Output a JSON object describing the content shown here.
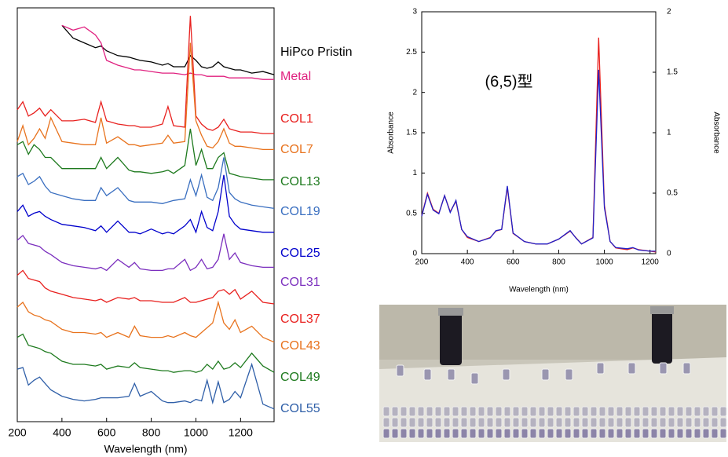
{
  "chart_data": [
    {
      "type": "line",
      "xlabel": "Wavelength (nm)",
      "x": [
        200,
        225,
        250,
        275,
        300,
        325,
        350,
        400,
        450,
        500,
        550,
        575,
        600,
        650,
        700,
        725,
        750,
        800,
        850,
        875,
        900,
        950,
        975,
        1000,
        1025,
        1050,
        1075,
        1100,
        1125,
        1150,
        1175,
        1200,
        1250,
        1300,
        1350
      ],
      "xlim": [
        200,
        1350
      ],
      "xticks": [
        200,
        400,
        600,
        800,
        1000,
        1200
      ],
      "ylim": [
        0,
        13
      ],
      "series": [
        {
          "name": "HiPco Pristin",
          "color": "#000000",
          "values": [
            null,
            null,
            null,
            null,
            null,
            null,
            null,
            12.45,
            12.05,
            11.9,
            11.75,
            11.8,
            11.65,
            11.5,
            11.45,
            11.4,
            11.35,
            11.3,
            11.2,
            11.25,
            11.15,
            11.15,
            11.5,
            11.35,
            11.15,
            11.1,
            11.15,
            11.3,
            11.15,
            11.1,
            11.05,
            11.05,
            10.95,
            11.0,
            10.9
          ]
        },
        {
          "name": "Metal",
          "color": "#e0207f",
          "values": [
            null,
            null,
            null,
            null,
            null,
            null,
            null,
            12.45,
            12.3,
            12.4,
            12.15,
            11.9,
            11.35,
            11.2,
            11.1,
            11.05,
            11.05,
            11.0,
            10.95,
            10.95,
            10.95,
            10.9,
            10.95,
            10.9,
            10.9,
            10.85,
            10.85,
            10.85,
            10.85,
            10.8,
            10.8,
            10.8,
            10.8,
            10.75,
            10.75
          ]
        },
        {
          "name": "COL1",
          "color": "#e8201e",
          "values": [
            9.8,
            10.05,
            9.6,
            9.7,
            9.85,
            9.6,
            9.8,
            9.45,
            9.45,
            9.5,
            9.4,
            10.05,
            9.45,
            9.35,
            9.3,
            9.3,
            9.25,
            9.25,
            9.35,
            9.9,
            9.3,
            9.25,
            12.75,
            9.6,
            9.35,
            9.2,
            9.15,
            9.25,
            9.5,
            9.2,
            9.15,
            9.1,
            9.1,
            9.05,
            9.05
          ]
        },
        {
          "name": "COL7",
          "color": "#e8731e",
          "values": [
            8.8,
            9.3,
            8.7,
            8.9,
            9.2,
            8.9,
            9.55,
            8.8,
            8.75,
            8.7,
            8.7,
            9.55,
            8.75,
            8.95,
            8.7,
            8.7,
            8.65,
            8.7,
            8.75,
            9.0,
            8.75,
            8.8,
            11.9,
            9.45,
            9.0,
            8.65,
            8.6,
            8.8,
            9.2,
            8.75,
            8.65,
            8.65,
            8.6,
            8.55,
            8.55
          ]
        },
        {
          "name": "COL13",
          "color": "#1e7a1e",
          "values": [
            8.7,
            8.8,
            8.4,
            8.7,
            8.55,
            8.3,
            8.3,
            7.95,
            7.95,
            7.95,
            7.95,
            8.3,
            7.95,
            8.3,
            7.9,
            7.85,
            7.85,
            7.8,
            7.85,
            7.9,
            7.8,
            8.05,
            9.2,
            8.05,
            8.55,
            7.95,
            7.95,
            8.3,
            8.45,
            7.8,
            7.75,
            7.7,
            7.65,
            7.6,
            7.6
          ]
        },
        {
          "name": "COL19",
          "color": "#3a6fc0",
          "values": [
            7.7,
            7.8,
            7.45,
            7.55,
            7.7,
            7.4,
            7.2,
            7.1,
            7.0,
            6.95,
            6.95,
            7.35,
            7.1,
            7.35,
            6.95,
            6.9,
            6.9,
            6.9,
            6.85,
            6.9,
            6.95,
            7.0,
            7.6,
            7.1,
            7.75,
            7.05,
            6.95,
            7.35,
            8.3,
            7.2,
            7.0,
            6.9,
            6.8,
            6.75,
            6.7
          ]
        },
        {
          "name": "COL25",
          "color": "#0000cc",
          "values": [
            6.6,
            6.8,
            6.45,
            6.55,
            6.6,
            6.45,
            6.35,
            6.2,
            6.15,
            6.1,
            6.0,
            6.15,
            5.95,
            6.3,
            5.95,
            5.95,
            5.9,
            6.05,
            5.9,
            5.95,
            5.9,
            6.15,
            6.35,
            5.95,
            6.6,
            6.1,
            6.0,
            6.6,
            7.75,
            6.45,
            6.2,
            6.05,
            6.0,
            5.95,
            5.95
          ]
        },
        {
          "name": "COL31",
          "color": "#7b2fbe",
          "values": [
            5.7,
            5.85,
            5.6,
            5.55,
            5.5,
            5.35,
            5.25,
            5.0,
            4.9,
            4.85,
            4.8,
            4.85,
            4.75,
            5.1,
            4.85,
            5.0,
            4.8,
            4.75,
            4.75,
            4.8,
            4.8,
            5.1,
            4.75,
            4.85,
            5.1,
            4.8,
            4.85,
            5.1,
            5.9,
            5.1,
            5.3,
            5.0,
            4.9,
            4.85,
            4.85
          ]
        },
        {
          "name": "COL37",
          "color": "#e8201e",
          "values": [
            4.6,
            4.75,
            4.5,
            4.45,
            4.4,
            4.2,
            4.1,
            4.0,
            3.9,
            3.85,
            3.8,
            3.85,
            3.75,
            3.9,
            3.85,
            3.9,
            3.8,
            3.8,
            3.75,
            3.75,
            3.75,
            3.9,
            3.75,
            3.75,
            3.8,
            3.85,
            3.9,
            4.1,
            4.15,
            4.0,
            4.15,
            3.85,
            4.1,
            3.75,
            3.7
          ]
        },
        {
          "name": "COL43",
          "color": "#e8731e",
          "values": [
            3.6,
            3.75,
            3.45,
            3.35,
            3.3,
            3.2,
            3.15,
            2.9,
            2.8,
            2.8,
            2.75,
            2.8,
            2.65,
            2.8,
            2.65,
            3.0,
            2.7,
            2.65,
            2.65,
            2.7,
            2.65,
            2.8,
            2.7,
            2.65,
            2.8,
            2.95,
            3.1,
            3.75,
            3.1,
            2.9,
            3.2,
            2.8,
            3.0,
            2.65,
            2.5
          ]
        },
        {
          "name": "COL49",
          "color": "#1e7a1e",
          "values": [
            2.65,
            2.75,
            2.4,
            2.35,
            2.3,
            2.2,
            2.15,
            1.9,
            1.8,
            1.8,
            1.75,
            1.8,
            1.65,
            1.75,
            1.7,
            1.85,
            1.7,
            1.65,
            1.6,
            1.6,
            1.55,
            1.6,
            1.6,
            1.55,
            1.6,
            1.8,
            1.65,
            1.9,
            1.65,
            1.7,
            1.85,
            1.7,
            2.15,
            1.75,
            1.55
          ]
        },
        {
          "name": "COL55",
          "color": "#2f5fa8",
          "values": [
            1.65,
            1.7,
            1.15,
            1.3,
            1.4,
            1.2,
            1.0,
            0.8,
            0.7,
            0.65,
            0.7,
            0.75,
            0.75,
            0.75,
            0.8,
            1.2,
            0.8,
            0.95,
            0.65,
            0.6,
            0.6,
            0.65,
            0.6,
            0.7,
            0.65,
            1.3,
            0.6,
            1.25,
            0.6,
            0.7,
            0.95,
            0.75,
            1.8,
            0.55,
            0.4
          ]
        }
      ]
    },
    {
      "type": "line",
      "xlabel": "Wavelength (nm)",
      "ylabel": "Absorbance",
      "y2label": "Absorbance",
      "annotation": "(6,5)型",
      "x": [
        200,
        225,
        250,
        275,
        300,
        325,
        350,
        375,
        400,
        450,
        500,
        525,
        550,
        575,
        600,
        650,
        700,
        750,
        800,
        850,
        875,
        900,
        950,
        975,
        1000,
        1025,
        1050,
        1100,
        1125,
        1150,
        1200,
        1225
      ],
      "xlim": [
        200,
        1225
      ],
      "xticks": [
        200,
        400,
        600,
        800,
        1000,
        1200
      ],
      "ylim": [
        0,
        3
      ],
      "yticks": [
        0,
        0.5,
        1,
        1.5,
        2,
        2.5,
        3
      ],
      "y2lim": [
        0,
        2
      ],
      "y2ticks": [
        0,
        0.5,
        1,
        1.5,
        2
      ],
      "series": [
        {
          "color": "#e8201e",
          "values": [
            0.47,
            0.75,
            0.55,
            0.5,
            0.72,
            0.52,
            0.65,
            0.3,
            0.2,
            0.15,
            0.2,
            0.28,
            0.3,
            0.82,
            0.25,
            0.15,
            0.12,
            0.12,
            0.18,
            0.28,
            0.2,
            0.12,
            0.2,
            2.68,
            0.6,
            0.15,
            0.07,
            0.05,
            0.07,
            0.05,
            0.03,
            0.02
          ]
        },
        {
          "color": "#2020c8",
          "axis": "y2",
          "values": [
            0.31,
            0.49,
            0.36,
            0.33,
            0.48,
            0.34,
            0.44,
            0.2,
            0.14,
            0.1,
            0.13,
            0.19,
            0.2,
            0.56,
            0.17,
            0.1,
            0.08,
            0.08,
            0.12,
            0.19,
            0.13,
            0.08,
            0.13,
            1.52,
            0.38,
            0.1,
            0.05,
            0.04,
            0.05,
            0.03,
            0.02,
            0.02
          ]
        }
      ]
    }
  ]
}
